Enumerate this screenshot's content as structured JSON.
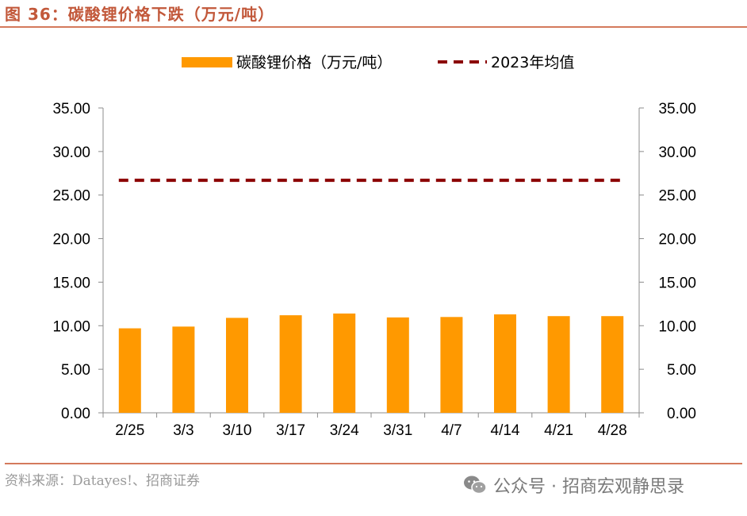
{
  "figure": {
    "title": "图 36：碳酸锂价格下跌（万元/吨）",
    "source": "资料来源：Datayes!、招商证券",
    "watermark": "公众号 · 招商宏观静思录",
    "watermark_icon": "wechat-icon"
  },
  "chart_data": {
    "type": "bar",
    "title": "碳酸锂价格下跌（万元/吨）",
    "categories": [
      "2/25",
      "3/3",
      "3/10",
      "3/17",
      "3/24",
      "3/31",
      "4/7",
      "4/14",
      "4/21",
      "4/28"
    ],
    "series": [
      {
        "name": "碳酸锂价格（万元/吨）",
        "type": "bar",
        "color": "#ff9900",
        "values": [
          9.7,
          9.9,
          10.9,
          11.2,
          11.4,
          10.95,
          11.0,
          11.3,
          11.1,
          11.1
        ]
      },
      {
        "name": "2023年均值",
        "type": "line",
        "style": "dashed",
        "color": "#8b0000",
        "values": [
          26.7,
          26.7,
          26.7,
          26.7,
          26.7,
          26.7,
          26.7,
          26.7,
          26.7,
          26.7
        ]
      }
    ],
    "ylim": [
      0,
      35
    ],
    "yticks": [
      "0.00",
      "5.00",
      "10.00",
      "15.00",
      "20.00",
      "25.00",
      "30.00",
      "35.00"
    ],
    "y2lim": [
      0,
      35
    ],
    "y2ticks": [
      "0.00",
      "5.00",
      "10.00",
      "15.00",
      "20.00",
      "25.00",
      "30.00",
      "35.00"
    ],
    "xlabel": "",
    "ylabel": "",
    "legend_position": "top"
  }
}
